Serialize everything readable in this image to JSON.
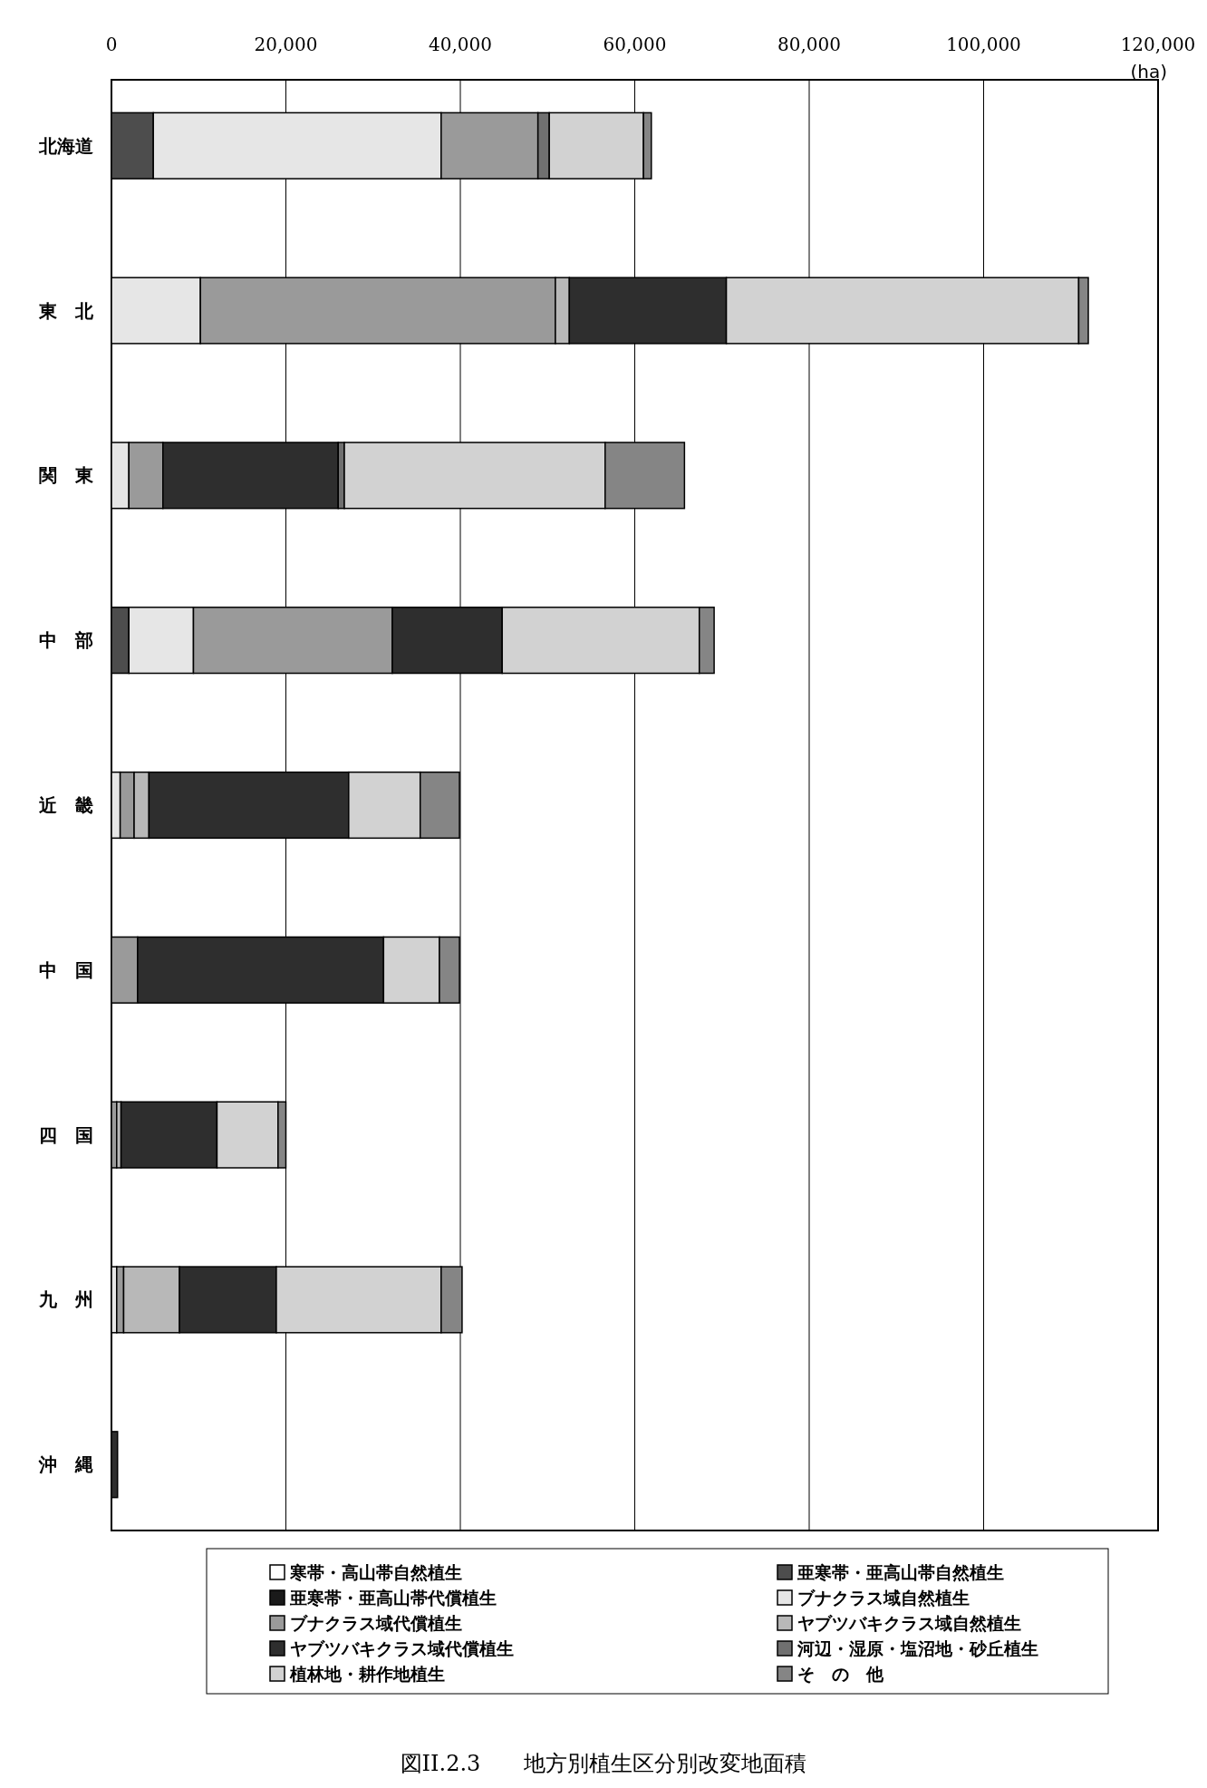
{
  "chart_data": {
    "type": "bar",
    "orientation": "horizontal",
    "stacked": true,
    "title": "図II.2.3　　地方別植生区分別改変地面積",
    "xlabel": "(ha)",
    "categories": [
      "北海道",
      "東　北",
      "関　東",
      "中　部",
      "近　畿",
      "中　国",
      "四　国",
      "九　州",
      "沖　縄"
    ],
    "xlim": [
      0,
      120000
    ],
    "xticks": [
      0,
      {
        "value": 20000,
        "label": "20,000"
      },
      {
        "value": 40000,
        "label": "40,000"
      },
      {
        "value": 60000,
        "label": "60,000"
      },
      {
        "value": 80000,
        "label": "80,000"
      },
      {
        "value": 100000,
        "label": "100,000"
      },
      {
        "value": 120000,
        "label": "120,000"
      }
    ],
    "grid": "x",
    "legend": "bottom",
    "series": [
      {
        "name": "寒帯・高山帯自然植生",
        "color": "#ffffff",
        "values": [
          0,
          0,
          0,
          0,
          0,
          0,
          0,
          0,
          0
        ]
      },
      {
        "name": "亜寒帯・亜高山帯自然植生",
        "color": "#4d4d4d",
        "values": [
          4800,
          0,
          0,
          2000,
          0,
          0,
          0,
          0,
          0
        ]
      },
      {
        "name": "亜寒帯・亜高山帯代償植生",
        "color": "#1a1a1a",
        "values": [
          0,
          0,
          0,
          0,
          0,
          0,
          0,
          0,
          0
        ]
      },
      {
        "name": "ブナクラス域自然植生",
        "color": "#e6e6e6",
        "values": [
          33000,
          10200,
          2000,
          7400,
          1000,
          0,
          0,
          600,
          0
        ]
      },
      {
        "name": "ブナクラス域代償植生",
        "color": "#9a9a9a",
        "values": [
          11100,
          40700,
          3900,
          22800,
          1600,
          3000,
          600,
          800,
          0
        ]
      },
      {
        "name": "ヤブツバキクラス域自然植生",
        "color": "#b8b8b8",
        "values": [
          0,
          1600,
          0,
          0,
          1700,
          0,
          500,
          6400,
          0
        ]
      },
      {
        "name": "ヤブツバキクラス域代償植生",
        "color": "#2e2e2e",
        "values": [
          0,
          18000,
          20100,
          12600,
          22900,
          28200,
          11000,
          11100,
          700
        ]
      },
      {
        "name": "河辺・湿原・塩沼地・砂丘植生",
        "color": "#707070",
        "values": [
          1300,
          0,
          700,
          0,
          0,
          0,
          0,
          0,
          0
        ]
      },
      {
        "name": "植林地・耕作地植生",
        "color": "#d2d2d2",
        "values": [
          10800,
          40400,
          29900,
          22600,
          8200,
          6400,
          7000,
          18900,
          0
        ]
      },
      {
        "name": "そ　の　他",
        "color": "#858585",
        "values": [
          900,
          1100,
          9100,
          1700,
          4500,
          2300,
          900,
          2400,
          0
        ]
      }
    ]
  }
}
